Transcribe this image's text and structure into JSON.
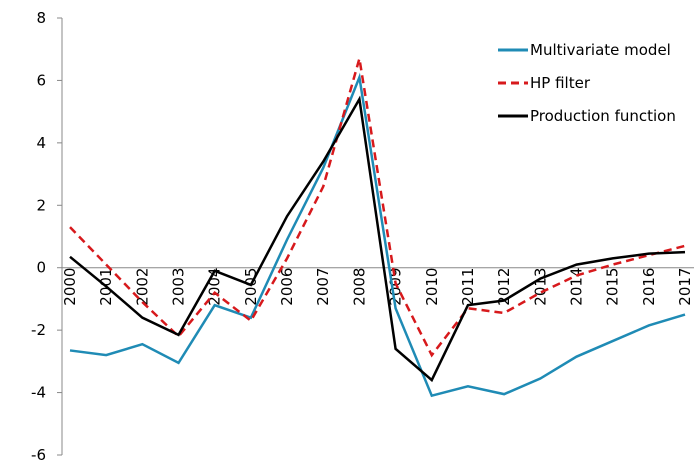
{
  "chart_data": {
    "type": "line",
    "categories": [
      "2000",
      "2001",
      "2002",
      "2003",
      "2004",
      "2005",
      "2006",
      "2007",
      "2008",
      "2009",
      "2010",
      "2011",
      "2012",
      "2013",
      "2014",
      "2015",
      "2016",
      "2017"
    ],
    "series": [
      {
        "name": "Multivariate model",
        "color": "#1f8bb5",
        "dashed": false,
        "values": [
          -2.65,
          -2.8,
          -2.45,
          -3.05,
          -1.2,
          -1.6,
          0.9,
          3.2,
          6.1,
          -1.3,
          -4.1,
          -3.8,
          -4.05,
          -3.55,
          -2.85,
          -2.35,
          -1.85,
          -1.5
        ]
      },
      {
        "name": "HP filter",
        "color": "#d7191c",
        "dashed": true,
        "values": [
          1.3,
          0.1,
          -1.1,
          -2.2,
          -0.8,
          -1.7,
          0.3,
          2.6,
          6.7,
          -0.5,
          -2.8,
          -1.3,
          -1.45,
          -0.8,
          -0.25,
          0.1,
          0.4,
          0.7
        ]
      },
      {
        "name": "Production function",
        "color": "#000000",
        "dashed": false,
        "values": [
          0.35,
          -0.6,
          -1.6,
          -2.15,
          -0.1,
          -0.55,
          1.65,
          3.4,
          5.4,
          -2.6,
          -3.6,
          -1.2,
          -1.05,
          -0.35,
          0.1,
          0.3,
          0.45,
          0.5
        ]
      }
    ],
    "ylim": [
      -6,
      8
    ],
    "yticks": [
      -6,
      -4,
      -2,
      0,
      2,
      4,
      6,
      8
    ],
    "grid": false,
    "legend": "upper right"
  }
}
